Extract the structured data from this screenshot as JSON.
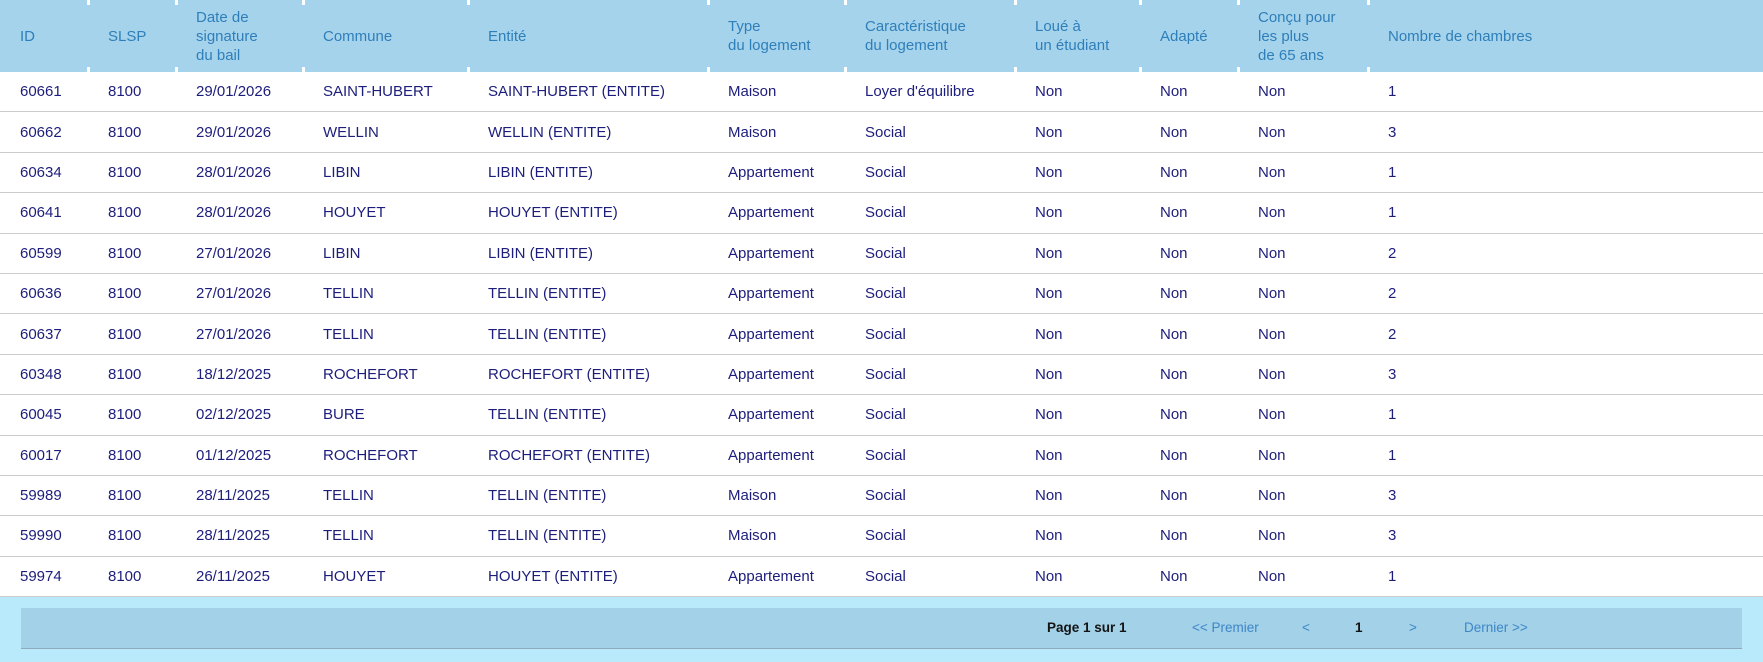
{
  "table": {
    "columns": [
      {
        "key": "id",
        "label": "ID"
      },
      {
        "key": "slsp",
        "label": "SLSP"
      },
      {
        "key": "date",
        "label": "Date de\nsignature\ndu bail"
      },
      {
        "key": "commune",
        "label": "Commune"
      },
      {
        "key": "entite",
        "label": "Entité"
      },
      {
        "key": "type",
        "label": "Type\ndu logement"
      },
      {
        "key": "caracteristique",
        "label": "Caractéristique\ndu logement"
      },
      {
        "key": "etudiant",
        "label": "Loué à\nun étudiant"
      },
      {
        "key": "adapte",
        "label": "Adapté"
      },
      {
        "key": "concu65",
        "label": "Conçu pour\nles plus\nde 65 ans"
      },
      {
        "key": "chambres",
        "label": "Nombre de chambres"
      }
    ],
    "rows": [
      {
        "id": "60661",
        "slsp": "8100",
        "date": "29/01/2026",
        "commune": "SAINT-HUBERT",
        "entite": "SAINT-HUBERT (ENTITE)",
        "type": "Maison",
        "caracteristique": "Loyer d'équilibre",
        "etudiant": "Non",
        "adapte": "Non",
        "concu65": "Non",
        "chambres": "1"
      },
      {
        "id": "60662",
        "slsp": "8100",
        "date": "29/01/2026",
        "commune": "WELLIN",
        "entite": "WELLIN (ENTITE)",
        "type": "Maison",
        "caracteristique": "Social",
        "etudiant": "Non",
        "adapte": "Non",
        "concu65": "Non",
        "chambres": "3"
      },
      {
        "id": "60634",
        "slsp": "8100",
        "date": "28/01/2026",
        "commune": "LIBIN",
        "entite": "LIBIN (ENTITE)",
        "type": "Appartement",
        "caracteristique": "Social",
        "etudiant": "Non",
        "adapte": "Non",
        "concu65": "Non",
        "chambres": "1"
      },
      {
        "id": "60641",
        "slsp": "8100",
        "date": "28/01/2026",
        "commune": "HOUYET",
        "entite": "HOUYET (ENTITE)",
        "type": "Appartement",
        "caracteristique": "Social",
        "etudiant": "Non",
        "adapte": "Non",
        "concu65": "Non",
        "chambres": "1"
      },
      {
        "id": "60599",
        "slsp": "8100",
        "date": "27/01/2026",
        "commune": "LIBIN",
        "entite": "LIBIN (ENTITE)",
        "type": "Appartement",
        "caracteristique": "Social",
        "etudiant": "Non",
        "adapte": "Non",
        "concu65": "Non",
        "chambres": "2"
      },
      {
        "id": "60636",
        "slsp": "8100",
        "date": "27/01/2026",
        "commune": "TELLIN",
        "entite": "TELLIN (ENTITE)",
        "type": "Appartement",
        "caracteristique": "Social",
        "etudiant": "Non",
        "adapte": "Non",
        "concu65": "Non",
        "chambres": "2"
      },
      {
        "id": "60637",
        "slsp": "8100",
        "date": "27/01/2026",
        "commune": "TELLIN",
        "entite": "TELLIN (ENTITE)",
        "type": "Appartement",
        "caracteristique": "Social",
        "etudiant": "Non",
        "adapte": "Non",
        "concu65": "Non",
        "chambres": "2"
      },
      {
        "id": "60348",
        "slsp": "8100",
        "date": "18/12/2025",
        "commune": "ROCHEFORT",
        "entite": "ROCHEFORT (ENTITE)",
        "type": "Appartement",
        "caracteristique": "Social",
        "etudiant": "Non",
        "adapte": "Non",
        "concu65": "Non",
        "chambres": "3"
      },
      {
        "id": "60045",
        "slsp": "8100",
        "date": "02/12/2025",
        "commune": "BURE",
        "entite": "TELLIN (ENTITE)",
        "type": "Appartement",
        "caracteristique": "Social",
        "etudiant": "Non",
        "adapte": "Non",
        "concu65": "Non",
        "chambres": "1"
      },
      {
        "id": "60017",
        "slsp": "8100",
        "date": "01/12/2025",
        "commune": "ROCHEFORT",
        "entite": "ROCHEFORT (ENTITE)",
        "type": "Appartement",
        "caracteristique": "Social",
        "etudiant": "Non",
        "adapte": "Non",
        "concu65": "Non",
        "chambres": "1"
      },
      {
        "id": "59989",
        "slsp": "8100",
        "date": "28/11/2025",
        "commune": "TELLIN",
        "entite": "TELLIN (ENTITE)",
        "type": "Maison",
        "caracteristique": "Social",
        "etudiant": "Non",
        "adapte": "Non",
        "concu65": "Non",
        "chambres": "3"
      },
      {
        "id": "59990",
        "slsp": "8100",
        "date": "28/11/2025",
        "commune": "TELLIN",
        "entite": "TELLIN (ENTITE)",
        "type": "Maison",
        "caracteristique": "Social",
        "etudiant": "Non",
        "adapte": "Non",
        "concu65": "Non",
        "chambres": "3"
      },
      {
        "id": "59974",
        "slsp": "8100",
        "date": "26/11/2025",
        "commune": "HOUYET",
        "entite": "HOUYET (ENTITE)",
        "type": "Appartement",
        "caracteristique": "Social",
        "etudiant": "Non",
        "adapte": "Non",
        "concu65": "Non",
        "chambres": "1"
      }
    ]
  },
  "pagination": {
    "page_info": "Page 1 sur 1",
    "first_label": "<< Premier",
    "prev_label": "<",
    "current_page": "1",
    "next_label": ">",
    "last_label": "Dernier >>"
  },
  "colors": {
    "header-bg": "#a6d3ec",
    "header-text": "#2e7fb9",
    "row-text": "#1d1d7c",
    "row-border": "#cccccc",
    "footer-bg": "#b9eafb",
    "pager-bg": "#a3d1e8",
    "pager-border": "#8fa9bd",
    "link": "#3e86c6",
    "pager-text": "#141414"
  }
}
